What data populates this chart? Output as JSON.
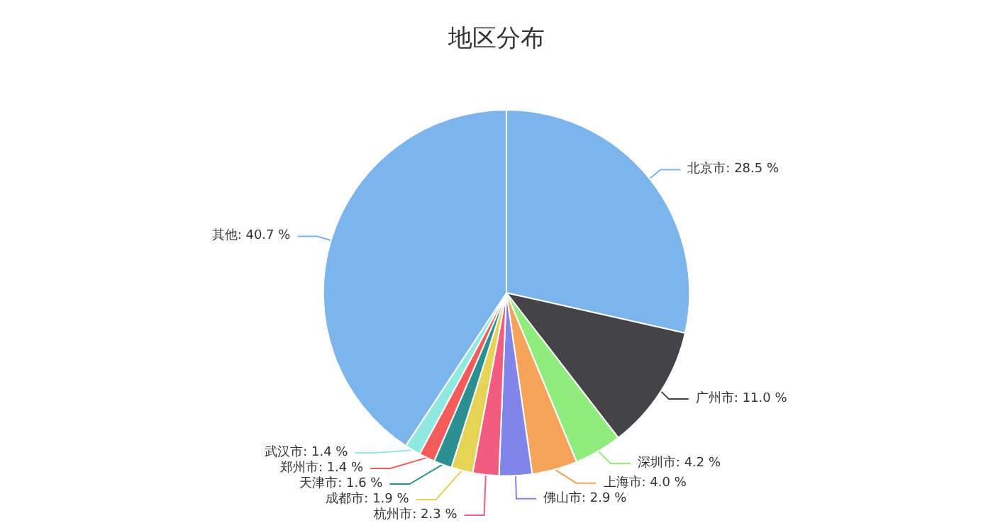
{
  "chart_data": {
    "type": "pie",
    "title": "地区分布",
    "categories": [
      "北京市",
      "广州市",
      "深圳市",
      "上海市",
      "佛山市",
      "杭州市",
      "成都市",
      "天津市",
      "郑州市",
      "武汉市",
      "其他"
    ],
    "values": [
      28.5,
      11.0,
      4.2,
      4.0,
      2.9,
      2.3,
      1.9,
      1.6,
      1.4,
      1.4,
      40.7
    ],
    "value_labels": [
      "28.5 %",
      "11.0 %",
      "4.2 %",
      "4.0 %",
      "2.9 %",
      "2.3 %",
      "1.9 %",
      "1.6 %",
      "1.4 %",
      "1.4 %",
      "40.7 %"
    ],
    "colors": [
      "#7cb5ec",
      "#434348",
      "#90ed7d",
      "#f7a35c",
      "#8085e9",
      "#f15c80",
      "#e4d354",
      "#2b908f",
      "#f45b5b",
      "#91e8e1",
      "#7cb5ec"
    ]
  }
}
